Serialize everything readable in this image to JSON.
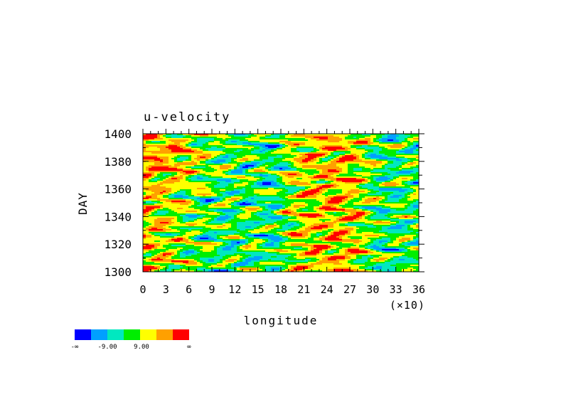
{
  "chart_data": {
    "type": "heatmap",
    "title": "u-velocity",
    "xlabel": "longitude",
    "ylabel": "DAY",
    "x_multiplier_label": "(×10)",
    "xlim": [
      0,
      36
    ],
    "ylim": [
      1300,
      1400
    ],
    "x_ticks": [
      "0",
      "3",
      "6",
      "9",
      "12",
      "15",
      "18",
      "21",
      "24",
      "27",
      "30",
      "33",
      "36"
    ],
    "y_ticks": [
      "1300",
      "1320",
      "1340",
      "1360",
      "1380",
      "1400"
    ],
    "colorbar": {
      "colors": [
        "#0000ff",
        "#00a0ff",
        "#00e8c0",
        "#00ee00",
        "#ffff00",
        "#ffa000",
        "#ff0000"
      ],
      "labels": [
        "-∞",
        "-9.00",
        "9.00",
        "∞"
      ]
    }
  }
}
